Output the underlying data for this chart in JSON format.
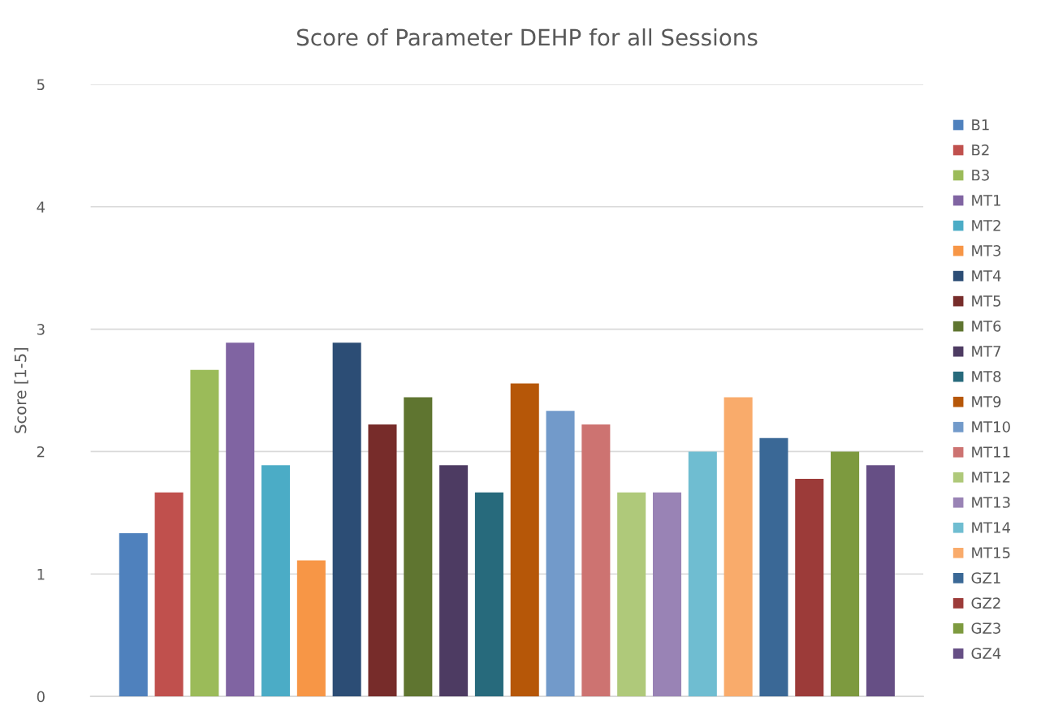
{
  "chart_data": {
    "type": "bar",
    "title": "Score of Parameter DEHP for all Sessions",
    "ylabel": "Score [1-5]",
    "categories": [
      null
    ],
    "series": [
      {
        "name": "B1",
        "color": "#4f81bd",
        "values": [
          1.333
        ]
      },
      {
        "name": "B2",
        "color": "#c0504d",
        "values": [
          1.667
        ]
      },
      {
        "name": "B3",
        "color": "#9bbb59",
        "values": [
          2.667
        ]
      },
      {
        "name": "MT1",
        "color": "#8064a2",
        "values": [
          2.889
        ]
      },
      {
        "name": "MT2",
        "color": "#4bacc6",
        "values": [
          1.889
        ]
      },
      {
        "name": "MT3",
        "color": "#f79646",
        "values": [
          1.111
        ]
      },
      {
        "name": "MT4",
        "color": "#2c4d75",
        "values": [
          2.889
        ]
      },
      {
        "name": "MT5",
        "color": "#772c2a",
        "values": [
          2.222
        ]
      },
      {
        "name": "MT6",
        "color": "#5f7530",
        "values": [
          2.444
        ]
      },
      {
        "name": "MT7",
        "color": "#4d3b62",
        "values": [
          1.889
        ]
      },
      {
        "name": "MT8",
        "color": "#276a7c",
        "values": [
          1.667
        ]
      },
      {
        "name": "MT9",
        "color": "#b65708",
        "values": [
          2.556
        ]
      },
      {
        "name": "MT10",
        "color": "#729aca",
        "values": [
          2.333
        ]
      },
      {
        "name": "MT11",
        "color": "#cd7371",
        "values": [
          2.222
        ]
      },
      {
        "name": "MT12",
        "color": "#afc97a",
        "values": [
          1.667
        ]
      },
      {
        "name": "MT13",
        "color": "#9983b5",
        "values": [
          1.667
        ]
      },
      {
        "name": "MT14",
        "color": "#6fbdd1",
        "values": [
          2.0
        ]
      },
      {
        "name": "MT15",
        "color": "#f9ab6b",
        "values": [
          2.444
        ]
      },
      {
        "name": "GZ1",
        "color": "#3a6896",
        "values": [
          2.111
        ]
      },
      {
        "name": "GZ2",
        "color": "#9c3b39",
        "values": [
          1.778
        ]
      },
      {
        "name": "GZ3",
        "color": "#7d9a3f",
        "values": [
          2.0
        ]
      },
      {
        "name": "GZ4",
        "color": "#664f85",
        "values": [
          1.889
        ]
      }
    ],
    "ylim": [
      0,
      5
    ],
    "yticks": [
      0,
      1,
      2,
      3,
      4,
      5
    ],
    "grid": "y",
    "legend": "right",
    "tick_labels": "y"
  }
}
